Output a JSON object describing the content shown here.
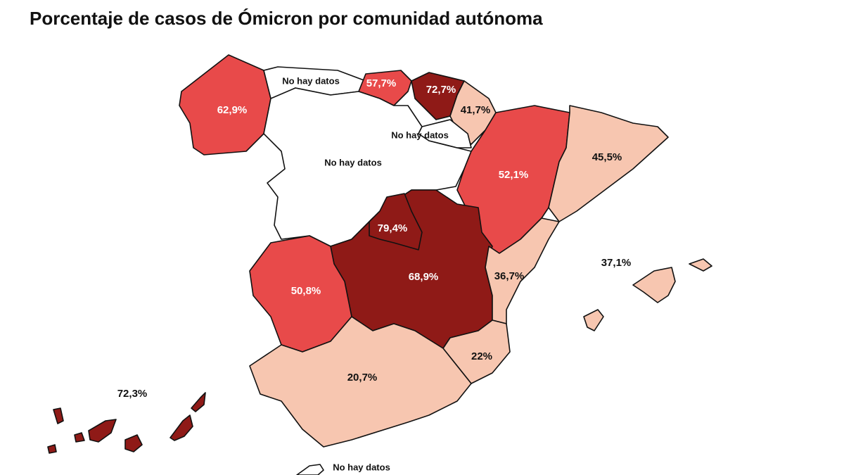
{
  "title": "Porcentaje de casos de Ómicron por comunidad autónoma",
  "regions": [
    {
      "label": "62,9%"
    },
    {
      "label": "No hay datos"
    },
    {
      "label": "57,7%"
    },
    {
      "label": "72,7%"
    },
    {
      "label": "41,7%"
    },
    {
      "label": "No hay datos"
    },
    {
      "label": "No hay datos"
    },
    {
      "label": "52,1%"
    },
    {
      "label": "45,5%"
    },
    {
      "label": "79,4%"
    },
    {
      "label": "68,9%"
    },
    {
      "label": "50,8%"
    },
    {
      "label": "36,7%"
    },
    {
      "label": "37,1%"
    },
    {
      "label": "22%"
    },
    {
      "label": "20,7%"
    },
    {
      "label": "72,3%"
    },
    {
      "label": "No hay datos"
    }
  ]
}
